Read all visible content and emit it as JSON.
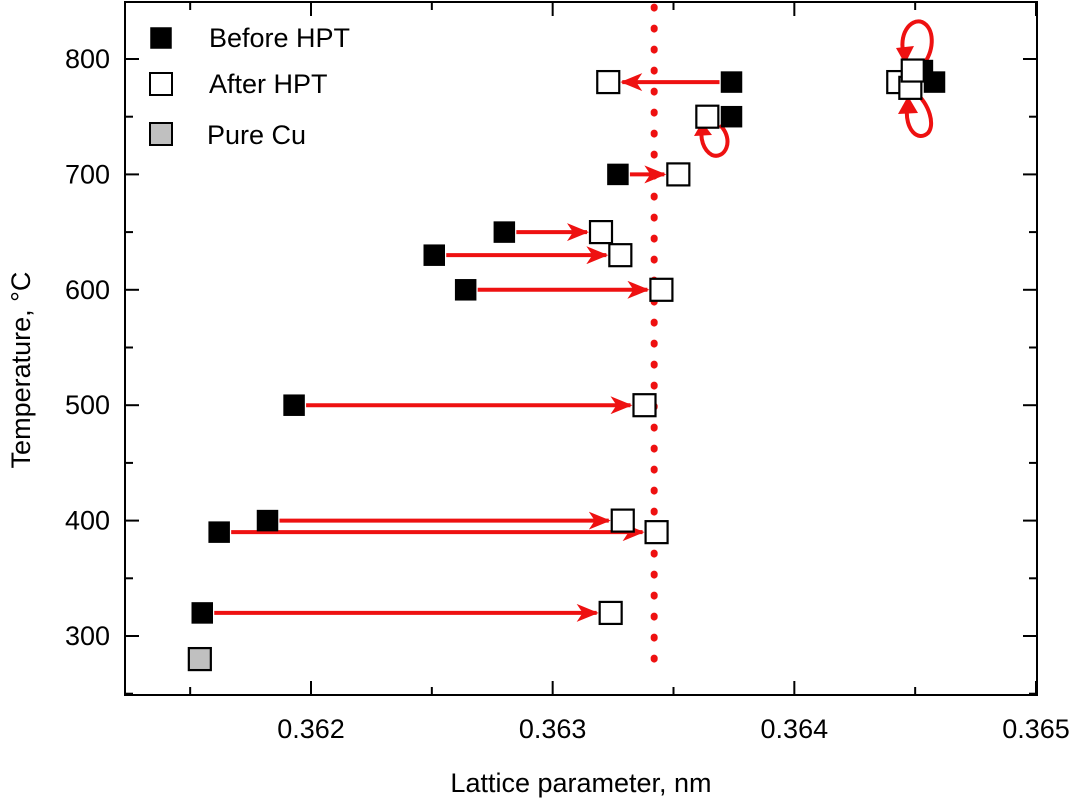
{
  "chart_data": {
    "type": "scatter",
    "title": "",
    "xlabel": "Lattice parameter, nm",
    "ylabel": "Temperature, °C",
    "xlim": [
      0.3613,
      0.365
    ],
    "ylim": [
      250,
      850
    ],
    "xticks": [
      0.362,
      0.363,
      0.364,
      0.365
    ],
    "xtick_labels": [
      "0.362",
      "0.363",
      "0.364",
      "0.365"
    ],
    "yticks": [
      300,
      400,
      500,
      600,
      700,
      800
    ],
    "ytick_labels": [
      "300",
      "400",
      "500",
      "600",
      "700",
      "800"
    ],
    "grid": false,
    "legend_position": "top-left",
    "colors": {
      "before": "#000000",
      "after": "#ffffff",
      "pure": "#c0c0c0",
      "arrow": "#ee1111",
      "reference_line": "#ee1111"
    },
    "series": [
      {
        "name": "Before HPT",
        "marker": "filled-square",
        "points": [
          {
            "x": 0.36155,
            "y": 320
          },
          {
            "x": 0.36162,
            "y": 390
          },
          {
            "x": 0.36182,
            "y": 400
          },
          {
            "x": 0.36193,
            "y": 500
          },
          {
            "x": 0.36264,
            "y": 600
          },
          {
            "x": 0.36251,
            "y": 630
          },
          {
            "x": 0.3628,
            "y": 650
          },
          {
            "x": 0.36327,
            "y": 700
          },
          {
            "x": 0.36374,
            "y": 750
          },
          {
            "x": 0.36374,
            "y": 780
          },
          {
            "x": 0.36453,
            "y": 790
          },
          {
            "x": 0.36458,
            "y": 780
          }
        ]
      },
      {
        "name": "After HPT",
        "marker": "open-square",
        "points": [
          {
            "x": 0.36324,
            "y": 320
          },
          {
            "x": 0.36343,
            "y": 390
          },
          {
            "x": 0.36329,
            "y": 400
          },
          {
            "x": 0.36338,
            "y": 500
          },
          {
            "x": 0.36345,
            "y": 600
          },
          {
            "x": 0.36328,
            "y": 630
          },
          {
            "x": 0.3632,
            "y": 650
          },
          {
            "x": 0.36352,
            "y": 700
          },
          {
            "x": 0.36364,
            "y": 750
          },
          {
            "x": 0.36323,
            "y": 780
          },
          {
            "x": 0.36443,
            "y": 780
          },
          {
            "x": 0.36448,
            "y": 775
          },
          {
            "x": 0.36449,
            "y": 790
          }
        ]
      },
      {
        "name": "Pure Cu",
        "marker": "gray-square",
        "points": [
          {
            "x": 0.36154,
            "y": 280
          }
        ]
      }
    ],
    "arrows": [
      {
        "from": [
          0.36155,
          320
        ],
        "to": [
          0.36324,
          320
        ]
      },
      {
        "from": [
          0.36162,
          390
        ],
        "to": [
          0.36343,
          390
        ]
      },
      {
        "from": [
          0.36182,
          400
        ],
        "to": [
          0.36329,
          400
        ]
      },
      {
        "from": [
          0.36193,
          500
        ],
        "to": [
          0.36338,
          500
        ]
      },
      {
        "from": [
          0.36264,
          600
        ],
        "to": [
          0.36345,
          600
        ]
      },
      {
        "from": [
          0.36251,
          630
        ],
        "to": [
          0.36328,
          630
        ]
      },
      {
        "from": [
          0.3628,
          650
        ],
        "to": [
          0.3632,
          650
        ]
      },
      {
        "from": [
          0.36327,
          700
        ],
        "to": [
          0.36352,
          700
        ]
      },
      {
        "from": [
          0.36374,
          780
        ],
        "to": [
          0.36323,
          780
        ]
      }
    ],
    "curved_arrows": [
      {
        "center": [
          0.36372,
          737
        ],
        "note": "loop from 750 down toward after point"
      },
      {
        "center": [
          0.3645,
          825
        ],
        "note": "upper loop around high-T cluster"
      },
      {
        "center": [
          0.3645,
          745
        ],
        "note": "lower loop around high-T cluster"
      }
    ],
    "reference_line": {
      "x": 0.36342,
      "y_range": [
        300,
        845
      ],
      "style": "dotted"
    }
  }
}
